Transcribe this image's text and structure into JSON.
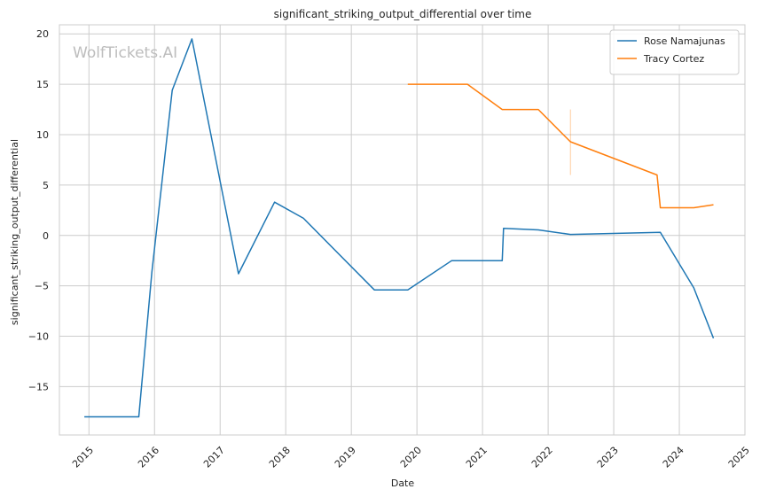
{
  "chart_data": {
    "type": "line",
    "title": "significant_striking_output_differential over time",
    "xlabel": "Date",
    "ylabel": "significant_striking_output_differential",
    "watermark": "WolfTickets.AI",
    "xlim": [
      2014.55,
      2025.0
    ],
    "ylim": [
      -19.8,
      20.9
    ],
    "x_ticks": [
      2015,
      2016,
      2017,
      2018,
      2019,
      2020,
      2021,
      2022,
      2023,
      2024,
      2025
    ],
    "x_tick_labels": [
      "2015",
      "2016",
      "2017",
      "2018",
      "2019",
      "2020",
      "2021",
      "2022",
      "2023",
      "2024",
      "2025"
    ],
    "y_ticks": [
      -15,
      -10,
      -5,
      0,
      5,
      10,
      15,
      20
    ],
    "y_tick_labels": [
      "−15",
      "−10",
      "−5",
      "0",
      "5",
      "10",
      "15",
      "20"
    ],
    "grid": true,
    "legend_position": "top-right",
    "series": [
      {
        "name": "Rose Namajunas",
        "color": "#1f77b4",
        "x": [
          2014.93,
          2015.76,
          2015.96,
          2016.27,
          2016.57,
          2017.28,
          2017.83,
          2018.27,
          2019.35,
          2019.86,
          2020.53,
          2021.3,
          2021.32,
          2021.85,
          2022.34,
          2023.71,
          2024.22,
          2024.52
        ],
        "y": [
          -18.0,
          -18.0,
          -3.6,
          14.4,
          19.5,
          -3.8,
          3.3,
          1.7,
          -5.4,
          -5.4,
          -2.5,
          -2.5,
          0.7,
          0.55,
          0.1,
          0.3,
          -5.2,
          -10.2
        ]
      },
      {
        "name": "Tracy Cortez",
        "color": "#ff7f0e",
        "x": [
          2019.86,
          2020.77,
          2021.3,
          2021.85,
          2022.34,
          2023.66,
          2023.71,
          2024.22,
          2024.52
        ],
        "y": [
          15.0,
          15.0,
          12.5,
          12.5,
          9.3,
          6.0,
          2.75,
          2.75,
          3.05
        ]
      }
    ],
    "error_bars": [
      {
        "series": "Tracy Cortez",
        "x": 2022.34,
        "y_low": 6.0,
        "y_high": 12.5,
        "color": "#ff7f0e"
      }
    ]
  }
}
